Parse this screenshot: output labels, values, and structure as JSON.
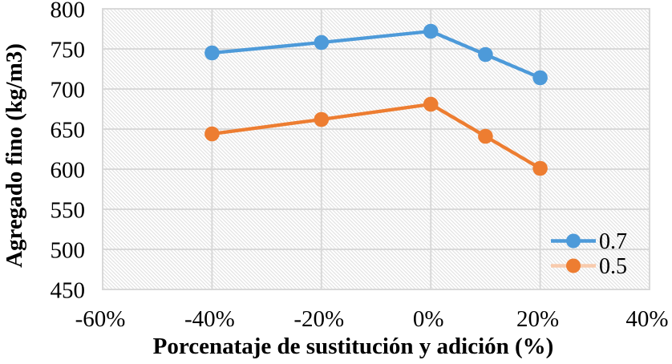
{
  "chart_data": {
    "type": "line",
    "title": "",
    "xlabel": "Porcenataje de sustitución y adición (%)",
    "ylabel": "Agregado fino (kg/m3)",
    "xlim": [
      -60,
      40
    ],
    "ylim": [
      450,
      800
    ],
    "grid": true,
    "legend_position": "inside-right",
    "plot_background": "diagonal-hatch",
    "x": [
      -40,
      -20,
      0,
      10,
      20
    ],
    "series": [
      {
        "name": "0.7",
        "color": "#4D9AD9",
        "legend_line_color": "#4D9AD9",
        "values": [
          745,
          758,
          772,
          743,
          714
        ]
      },
      {
        "name": "0.5",
        "color": "#ED7D31",
        "legend_line_color": "#F8CBAD",
        "values": [
          644,
          662,
          681,
          641,
          601
        ]
      }
    ],
    "x_ticks": [
      {
        "value": -60,
        "label": "-60%"
      },
      {
        "value": -40,
        "label": "-40%"
      },
      {
        "value": -20,
        "label": "-20%"
      },
      {
        "value": 0,
        "label": "0%"
      },
      {
        "value": 20,
        "label": "20%"
      },
      {
        "value": 40,
        "label": "40%"
      }
    ],
    "y_ticks": [
      {
        "value": 450,
        "label": "450"
      },
      {
        "value": 500,
        "label": "500"
      },
      {
        "value": 550,
        "label": "550"
      },
      {
        "value": 600,
        "label": "600"
      },
      {
        "value": 650,
        "label": "650"
      },
      {
        "value": 700,
        "label": "700"
      },
      {
        "value": 750,
        "label": "750"
      },
      {
        "value": 800,
        "label": "800"
      }
    ],
    "colors": {
      "gridline": "#D9D9D9",
      "hatch": "#E3E3E3",
      "text": "#000000",
      "background": "#FFFFFF"
    }
  }
}
